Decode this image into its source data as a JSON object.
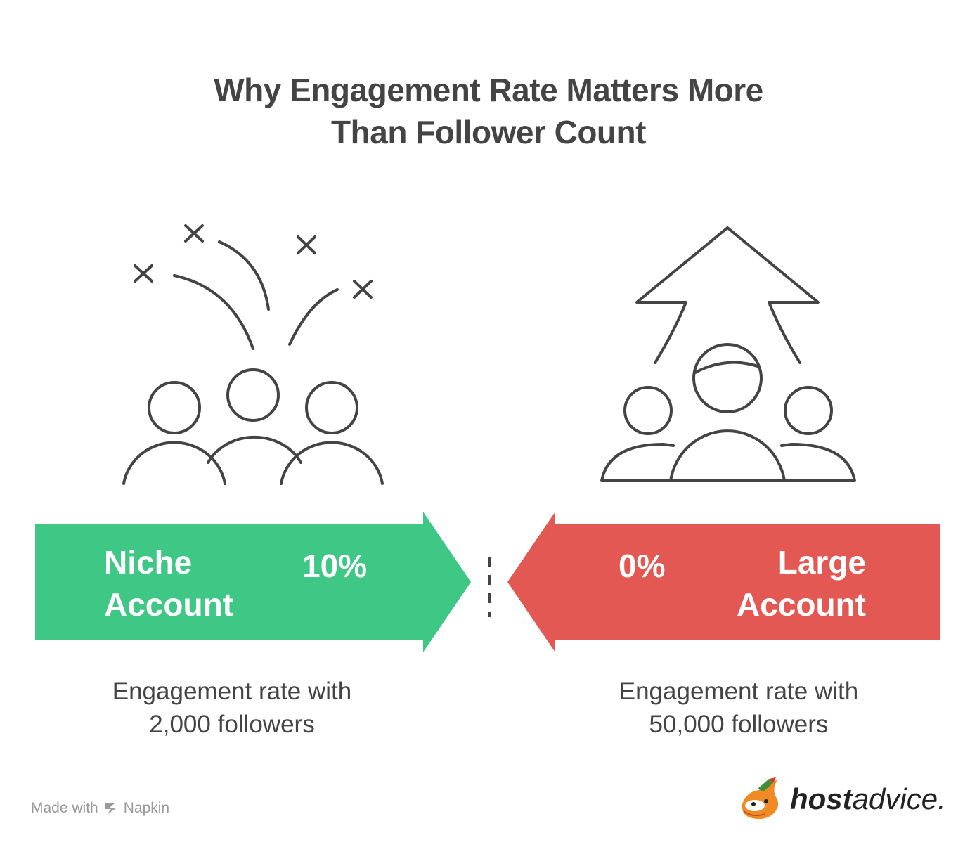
{
  "title": {
    "line1": "Why Engagement Rate Matters More",
    "line2": "Than Follower Count"
  },
  "left": {
    "label_line1": "Niche",
    "label_line2": "Account",
    "value": "10%",
    "caption_line1": "Engagement rate with",
    "caption_line2": "2,000 followers",
    "color": "#3fc785",
    "icon": "group-with-crosses-icon"
  },
  "right": {
    "label_line1": "Large",
    "label_line2": "Account",
    "value": "0%",
    "caption_line1": "Engagement rate with",
    "caption_line2": "50,000 followers",
    "color": "#e35853",
    "icon": "group-with-up-arrow-icon"
  },
  "footer": {
    "made_with": "Made with",
    "napkin": "Napkin",
    "logo_bold": "host",
    "logo_regular": "advice."
  }
}
